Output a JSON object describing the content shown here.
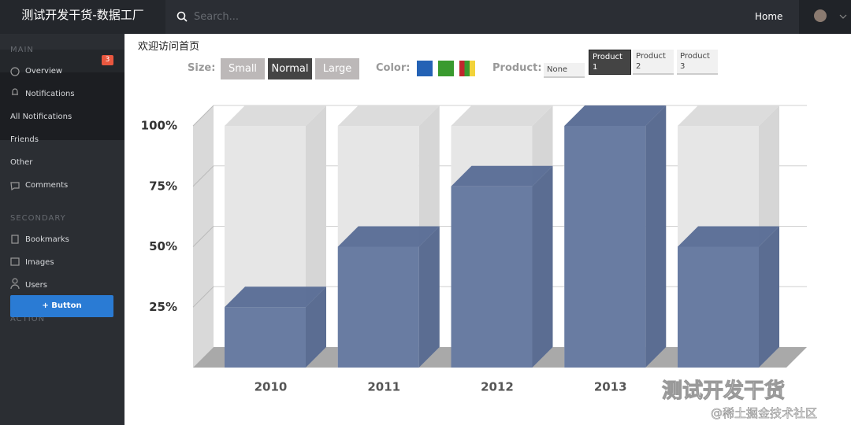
{
  "header": {
    "brand": "测试开发干货-数据工厂",
    "search_placeholder": "Search...",
    "nav_home": "Home"
  },
  "sidebar": {
    "main_heading": "MAIN",
    "overview": "Overview",
    "notifications": "Notifications",
    "notifications_badge": "3",
    "sub_items": [
      "All Notifications",
      "Friends",
      "Other"
    ],
    "comments": "Comments",
    "secondary_heading": "SECONDARY",
    "secondary_items": [
      "Bookmarks",
      "Images",
      "Users"
    ],
    "action_heading": "ACTION",
    "action_button": "+ Button"
  },
  "page_title": "欢迎访问首页",
  "controls": {
    "size_label": "Size:",
    "sizes": [
      "Small",
      "Normal",
      "Large"
    ],
    "color_label": "Color:",
    "product_label": "Product:",
    "products": [
      "None",
      "Product 1",
      "Product 2",
      "Product 3"
    ]
  },
  "watermark": {
    "main": "测试开发干货",
    "sub": "@稀土掘金技术社区"
  },
  "chart_data": {
    "type": "bar3d",
    "categories": [
      "2010",
      "2011",
      "2012",
      "2013",
      null
    ],
    "values": [
      25,
      50,
      75,
      100,
      50
    ],
    "color": "#64789f",
    "ylim": [
      0,
      100
    ],
    "yticks": [
      {
        "value": 25,
        "label": "25%"
      },
      {
        "value": 50,
        "label": "50%"
      },
      {
        "value": 75,
        "label": "75%"
      },
      {
        "value": 100,
        "label": "100%"
      }
    ],
    "grid": true
  }
}
